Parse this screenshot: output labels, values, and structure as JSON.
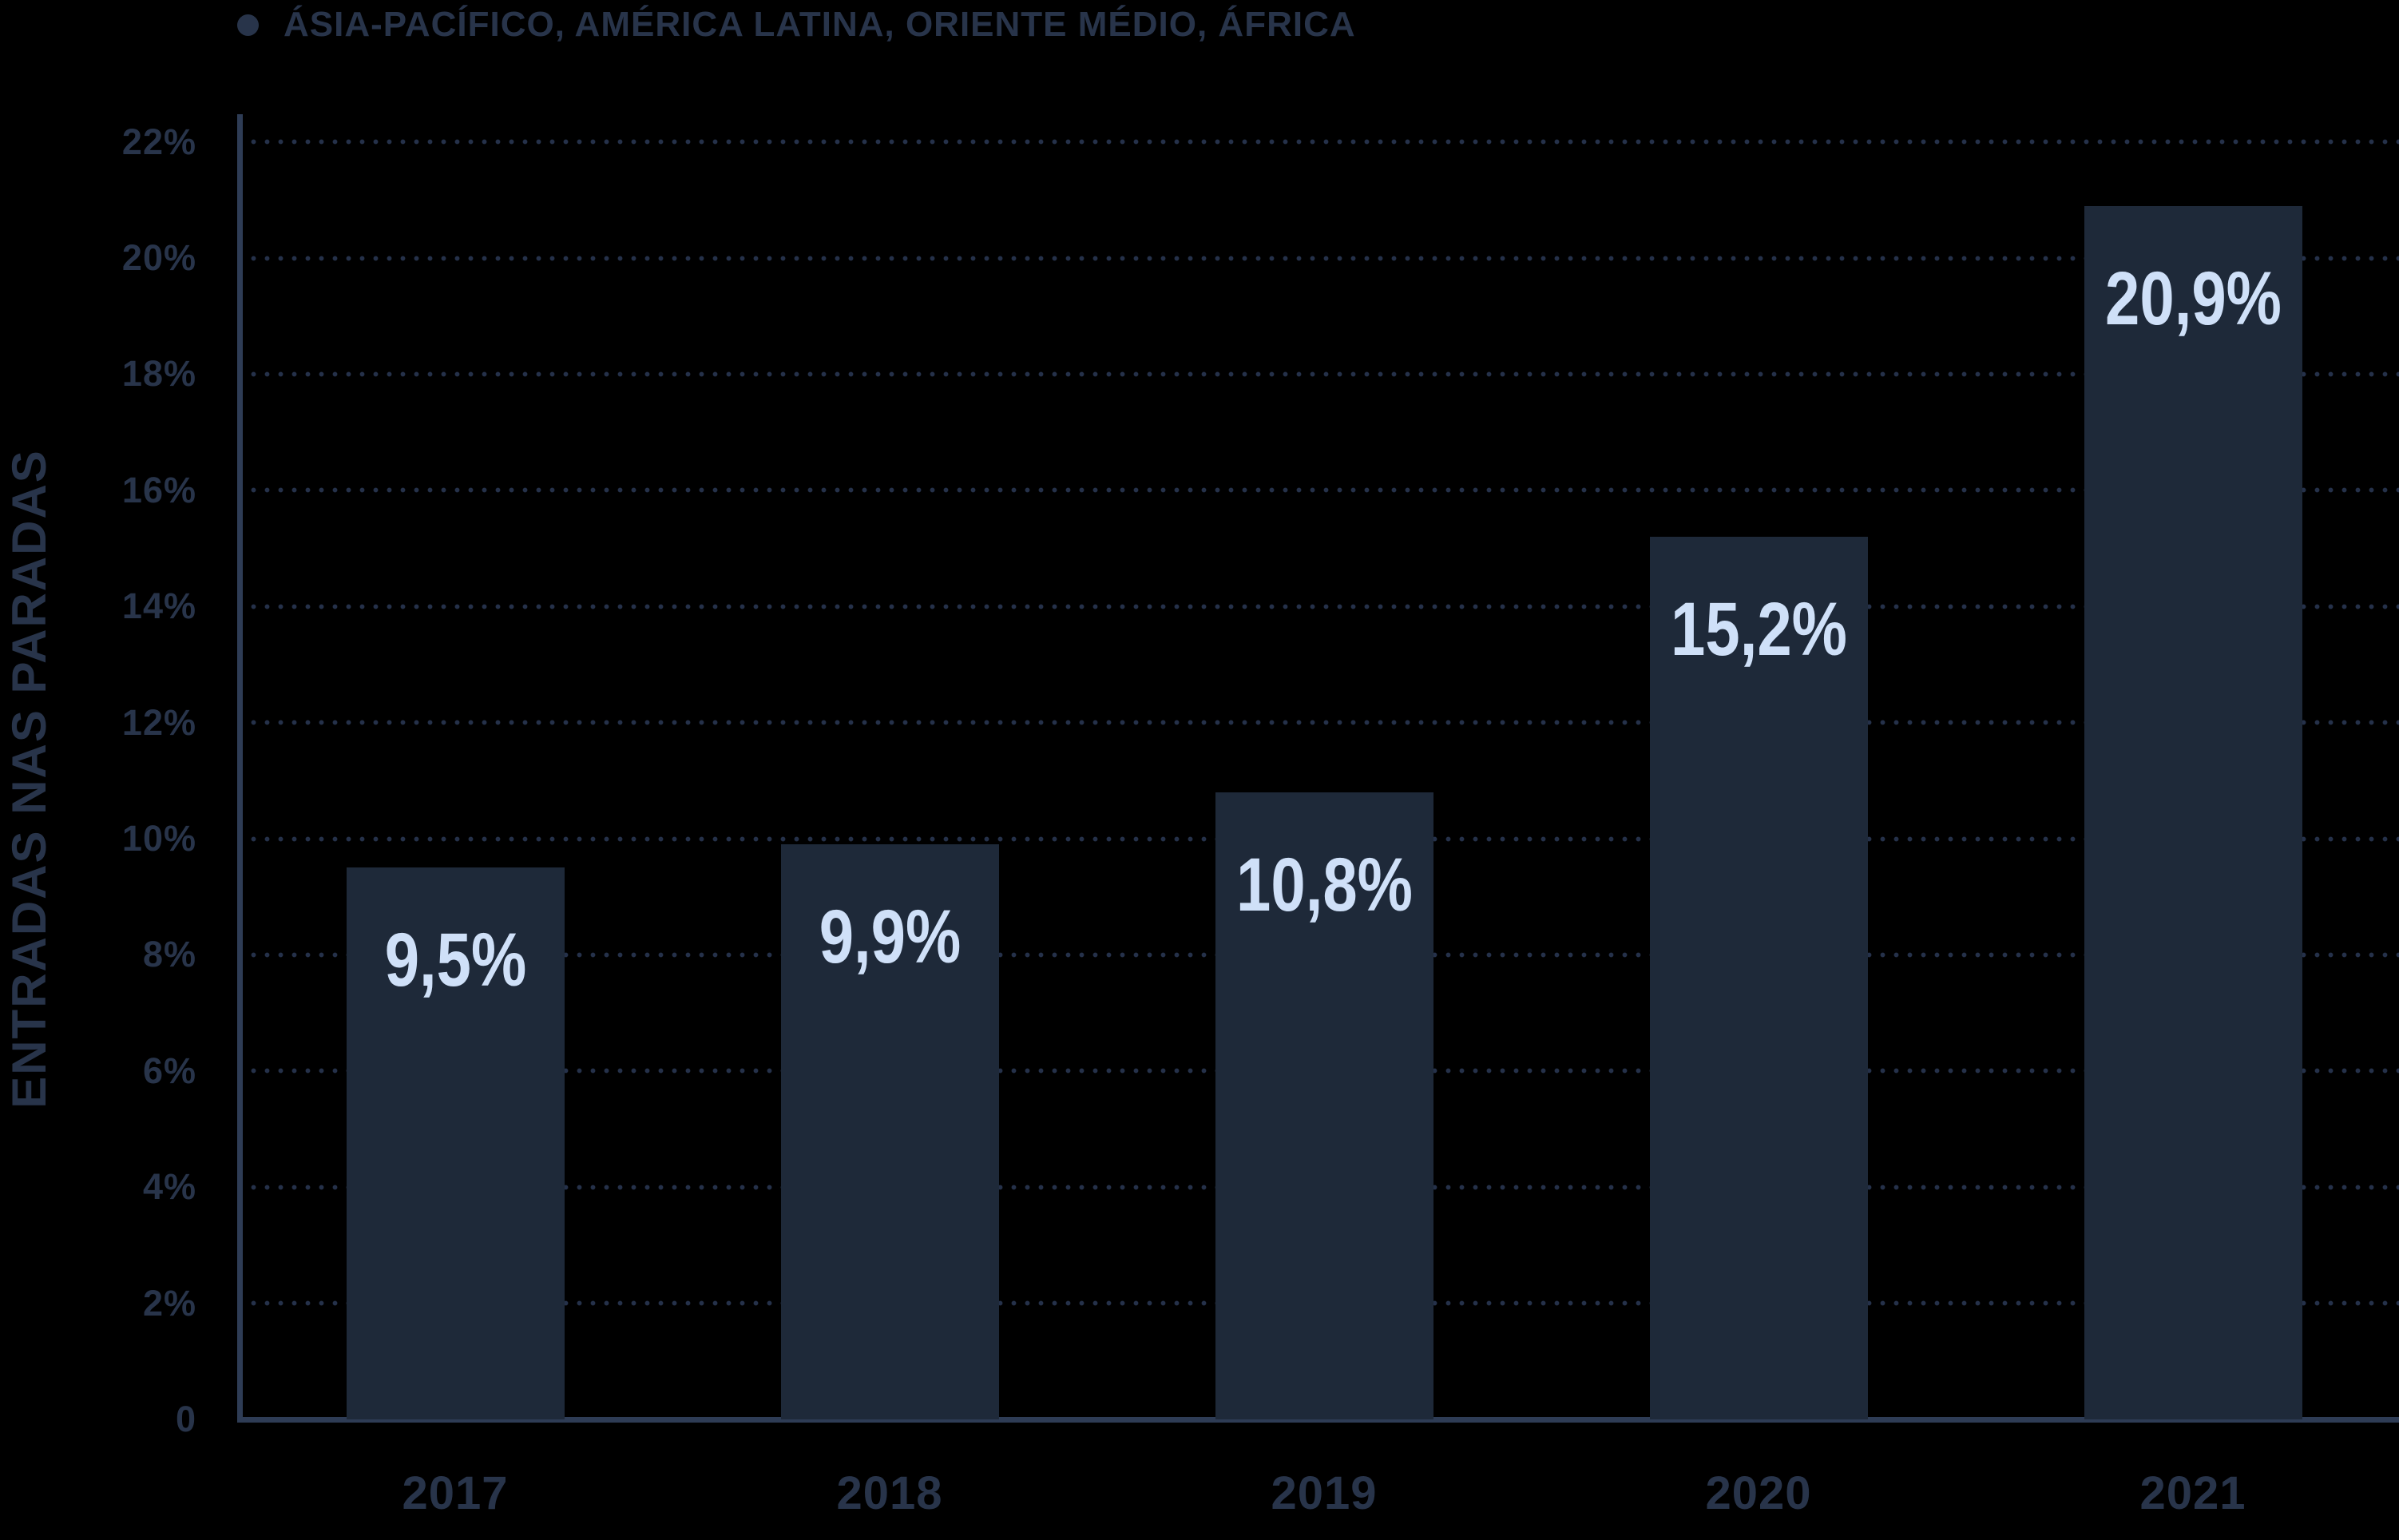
{
  "legend": {
    "marker": "dot",
    "label": "ÁSIA-PACÍFICO, AMÉRICA LATINA, ORIENTE MÉDIO, ÁFRICA"
  },
  "chart_data": {
    "type": "bar",
    "series_name": "ÁSIA-PACÍFICO, AMÉRICA LATINA, ORIENTE MÉDIO, ÁFRICA",
    "categories": [
      "2017",
      "2018",
      "2019",
      "2020",
      "2021"
    ],
    "values": [
      9.5,
      9.9,
      10.8,
      15.2,
      20.9
    ],
    "value_labels": [
      "9,5%",
      "9,9%",
      "10,8%",
      "15,2%",
      "20,9%"
    ],
    "xlabel": "",
    "ylabel": "ENTRADAS NAS PARADAS",
    "ylim": [
      0,
      22
    ],
    "yticks": [
      0,
      2,
      4,
      6,
      8,
      10,
      12,
      14,
      16,
      18,
      20,
      22
    ],
    "ytick_labels": [
      "0",
      "2%",
      "4%",
      "6%",
      "8%",
      "10%",
      "12%",
      "14%",
      "16%",
      "18%",
      "20%",
      "22%"
    ],
    "grid": "horizontal-dotted",
    "legend_position": "top-left",
    "colors": {
      "background": "#000000",
      "bar": "#1e2939",
      "bar_value_label": "#cfe0f8",
      "axis_text": "#28344a",
      "axis_line": "#2e3c55",
      "grid_dot": "#25314a"
    }
  }
}
